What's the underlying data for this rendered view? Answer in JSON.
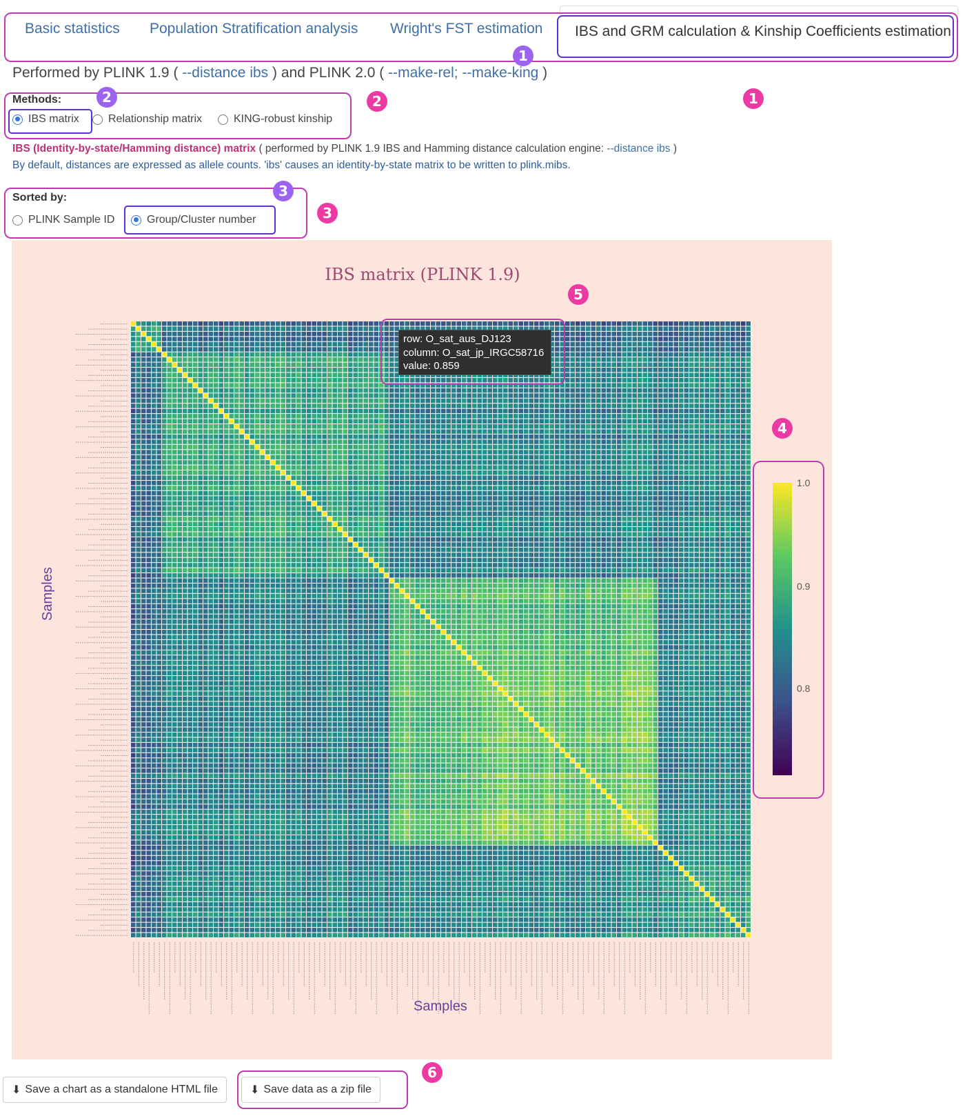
{
  "tabs": [
    {
      "label": "Basic statistics",
      "active": false
    },
    {
      "label": "Population Stratification analysis",
      "active": false
    },
    {
      "label": "Wright's FST estimation",
      "active": false
    },
    {
      "label": "IBS and GRM calculation & Kinship Coefficients estimation",
      "active": true
    }
  ],
  "performed": {
    "prefix": "Performed by PLINK 1.9 (",
    "link1": "--distance ibs",
    "middle": ") and PLINK 2.0 (",
    "link2": "--make-rel; --make-king",
    "suffix": ")"
  },
  "methods": {
    "title": "Methods:",
    "options": [
      "IBS matrix",
      "Relationship matrix",
      "KING-robust kinship"
    ],
    "selected": "IBS matrix"
  },
  "ibs_desc": {
    "strong": "IBS (Identity-by-state/Hamming distance) matrix",
    "rest": "( performed by PLINK 1.9 IBS and Hamming distance calculation engine:",
    "link": "--distance ibs",
    "close": ")",
    "default": "By default, distances are expressed as allele counts. 'ibs' causes an identity-by-state matrix to be written to plink.mibs."
  },
  "sorted_by": {
    "title": "Sorted by:",
    "options": [
      "PLINK Sample ID",
      "Group/Cluster number"
    ],
    "selected": "Group/Cluster number"
  },
  "markers": [
    "1",
    "2",
    "3",
    "4",
    "5",
    "6"
  ],
  "chart_data": {
    "type": "heatmap",
    "title": "IBS matrix (PLINK 1.9)",
    "xlabel": "Samples",
    "ylabel": "Samples",
    "colorscale": "Viridis",
    "zlim": [
      0.72,
      1.0
    ],
    "colorbar_ticks": [
      "1.0",
      "0.9",
      "0.8"
    ],
    "colorbar_tick_values": [
      1.0,
      0.9,
      0.8
    ],
    "diagonal_value": 1.0,
    "tooltip": {
      "row_label": "row:",
      "row": "O_sat_aus_DJ123",
      "column_label": "column:",
      "column": "O_sat_jp_IRGC58716",
      "value_label": "value:",
      "value": "0.859"
    },
    "colors": {
      "low": "#440154",
      "mid": "#21918c",
      "high": "#fde725",
      "background": "#fde4dc"
    }
  },
  "buttons": {
    "html": "Save a chart as a standalone HTML file",
    "zip": "Save data as a zip file"
  },
  "colors": {
    "accent": "#3f6fa8",
    "highlight": "#c03bb3",
    "marker": "#ec3aa5",
    "marker_sub": "#9b63f0"
  }
}
